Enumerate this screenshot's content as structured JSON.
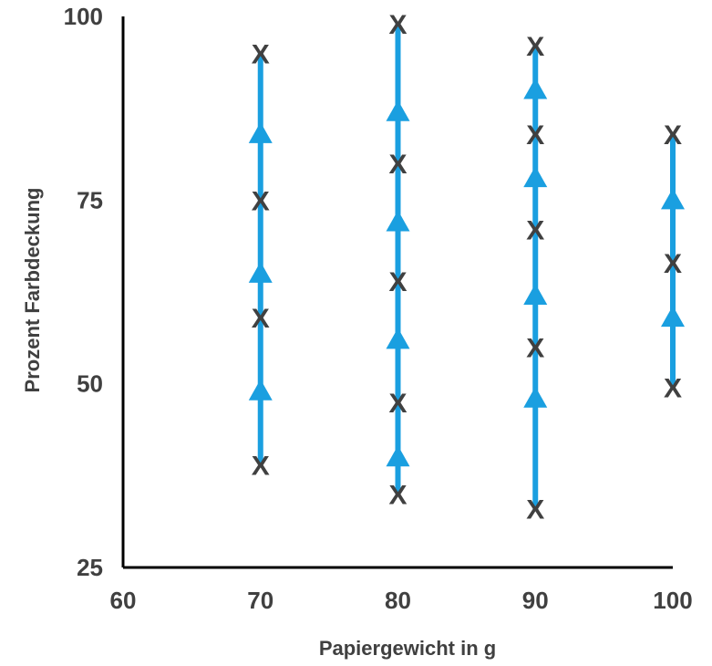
{
  "chart_data": {
    "type": "scatter",
    "title": "",
    "xlabel": "Papiergewicht in g",
    "ylabel": "Prozent Farbdeckung",
    "xlim": [
      60,
      100
    ],
    "ylim": [
      25,
      100
    ],
    "xticks": [
      "60",
      "70",
      "80",
      "90",
      "100"
    ],
    "yticks": [
      "25",
      "50",
      "75",
      "100"
    ],
    "grid": false,
    "legend": "none",
    "series": [
      {
        "marker": "x",
        "color": "#404040",
        "points": [
          {
            "x": 70,
            "y": 95
          },
          {
            "x": 70,
            "y": 75
          },
          {
            "x": 70,
            "y": 59
          },
          {
            "x": 70,
            "y": 39
          },
          {
            "x": 80,
            "y": 99
          },
          {
            "x": 80,
            "y": 80
          },
          {
            "x": 80,
            "y": 64
          },
          {
            "x": 80,
            "y": 47.5
          },
          {
            "x": 80,
            "y": 35
          },
          {
            "x": 90,
            "y": 96
          },
          {
            "x": 90,
            "y": 84
          },
          {
            "x": 90,
            "y": 71
          },
          {
            "x": 90,
            "y": 55
          },
          {
            "x": 90,
            "y": 33
          },
          {
            "x": 100,
            "y": 84
          },
          {
            "x": 100,
            "y": 66.5
          },
          {
            "x": 100,
            "y": 49.5
          }
        ]
      },
      {
        "marker": "triangle",
        "color": "#1a9fe0",
        "points": [
          {
            "x": 70,
            "y": 84
          },
          {
            "x": 70,
            "y": 65
          },
          {
            "x": 70,
            "y": 49
          },
          {
            "x": 80,
            "y": 87
          },
          {
            "x": 80,
            "y": 72
          },
          {
            "x": 80,
            "y": 56
          },
          {
            "x": 80,
            "y": 40
          },
          {
            "x": 90,
            "y": 90
          },
          {
            "x": 90,
            "y": 78
          },
          {
            "x": 90,
            "y": 62
          },
          {
            "x": 90,
            "y": 48
          },
          {
            "x": 100,
            "y": 75
          },
          {
            "x": 100,
            "y": 59
          }
        ]
      }
    ],
    "ranges": [
      {
        "x": 70,
        "y_min": 39,
        "y_max": 95
      },
      {
        "x": 80,
        "y_min": 35,
        "y_max": 99
      },
      {
        "x": 90,
        "y_min": 33,
        "y_max": 96
      },
      {
        "x": 100,
        "y_min": 49.5,
        "y_max": 84
      }
    ],
    "marker_x_text": "X",
    "colors": {
      "axis": "#000000",
      "text": "#404040",
      "accent": "#1a9fe0"
    }
  }
}
